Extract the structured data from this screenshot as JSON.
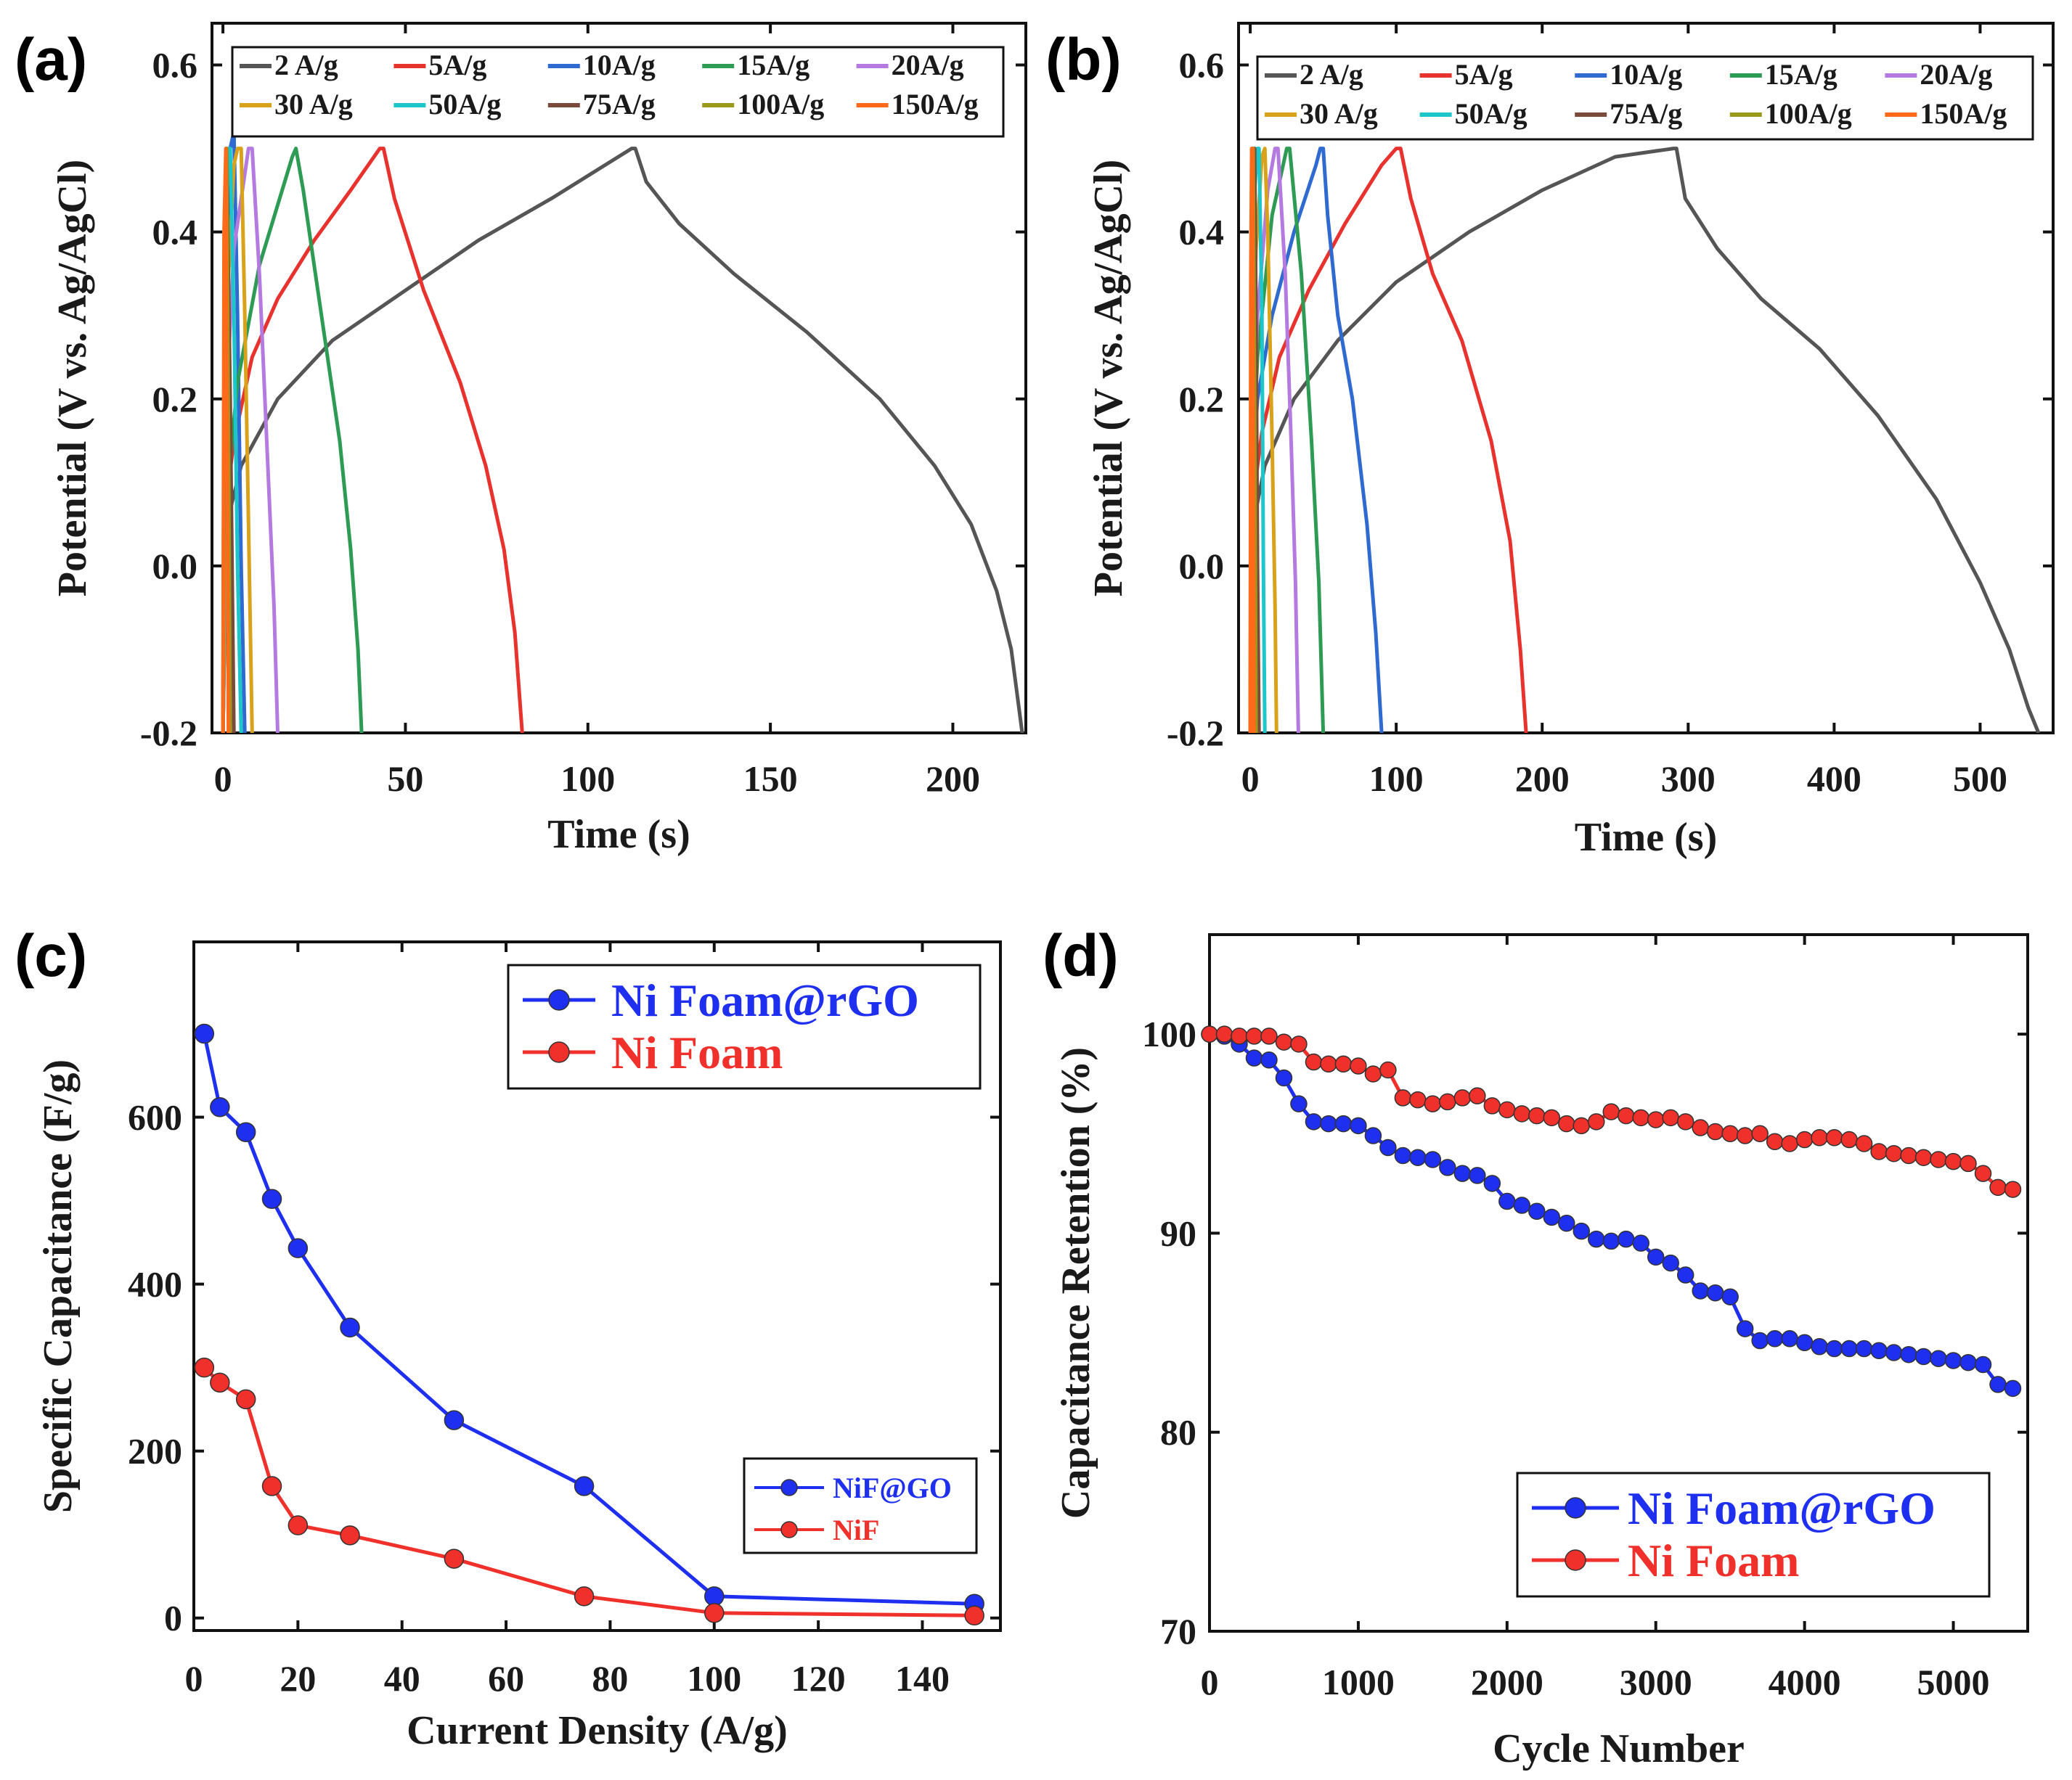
{
  "chart_data": [
    {
      "id": "a",
      "panel_label": "(a)",
      "type": "line",
      "xlabel": "Time (s)",
      "ylabel": "Potential (V vs. Ag/AgCl)",
      "xlim": [
        -3,
        220
      ],
      "ylim": [
        -0.2,
        0.65
      ],
      "xticks": [
        0,
        50,
        100,
        150,
        200
      ],
      "yticks": [
        -0.2,
        0.0,
        0.2,
        0.4,
        0.6
      ],
      "ytick_labels": [
        "-0.2",
        "0.0",
        "0.2",
        "0.4",
        "0.6"
      ],
      "legend_position": "top",
      "series": [
        {
          "name": "2 A/g",
          "color": "#555555",
          "x": [
            0,
            1,
            5,
            15,
            30,
            50,
            70,
            90,
            112,
            113,
            116,
            125,
            140,
            160,
            180,
            195,
            205,
            212,
            216,
            219
          ],
          "y": [
            -0.2,
            0.05,
            0.12,
            0.2,
            0.27,
            0.33,
            0.39,
            0.44,
            0.5,
            0.5,
            0.46,
            0.41,
            0.35,
            0.28,
            0.2,
            0.12,
            0.05,
            -0.03,
            -0.1,
            -0.2
          ]
        },
        {
          "name": "5A/g",
          "color": "#e8322e",
          "x": [
            0,
            1,
            3,
            8,
            15,
            25,
            35,
            43,
            44,
            47,
            55,
            65,
            72,
            77,
            80,
            82
          ],
          "y": [
            -0.2,
            0.08,
            0.15,
            0.25,
            0.32,
            0.39,
            0.45,
            0.5,
            0.5,
            0.44,
            0.33,
            0.22,
            0.12,
            0.02,
            -0.08,
            -0.2
          ]
        },
        {
          "name": "10A/g",
          "color": "#2f6ad0",
          "x": [
            0,
            0.5,
            2,
            3,
            4,
            5,
            6
          ],
          "y": [
            -0.2,
            0.3,
            0.5,
            0.52,
            0.3,
            0.0,
            -0.2
          ]
        },
        {
          "name": "15A/g",
          "color": "#2e9b55",
          "x": [
            0,
            1,
            4,
            10,
            19,
            20,
            22,
            27,
            32,
            35,
            37,
            38
          ],
          "y": [
            -0.2,
            0.08,
            0.22,
            0.36,
            0.49,
            0.5,
            0.45,
            0.3,
            0.15,
            0.02,
            -0.1,
            -0.2
          ]
        },
        {
          "name": "20A/g",
          "color": "#b57ae0",
          "x": [
            0,
            1,
            3,
            7,
            8,
            10,
            12,
            14,
            15
          ],
          "y": [
            -0.2,
            0.2,
            0.38,
            0.5,
            0.5,
            0.35,
            0.15,
            -0.05,
            -0.2
          ]
        },
        {
          "name": "30 A/g",
          "color": "#d8a21a",
          "x": [
            0,
            1,
            3,
            4,
            5,
            6,
            7,
            8
          ],
          "y": [
            -0.2,
            0.3,
            0.48,
            0.5,
            0.5,
            0.3,
            0.05,
            -0.2
          ]
        },
        {
          "name": "50A/g",
          "color": "#1cc6c9",
          "x": [
            0,
            0.5,
            1.5,
            2,
            3,
            4,
            5
          ],
          "y": [
            -0.2,
            0.35,
            0.5,
            0.5,
            0.3,
            0.0,
            -0.2
          ]
        },
        {
          "name": "75A/g",
          "color": "#7a4a3a",
          "x": [
            0,
            0.5,
            1,
            2,
            3
          ],
          "y": [
            -0.2,
            0.4,
            0.5,
            0.2,
            -0.2
          ]
        },
        {
          "name": "100A/g",
          "color": "#9a9a1a",
          "x": [
            0,
            0.4,
            1,
            1.6,
            2
          ],
          "y": [
            -0.2,
            0.4,
            0.5,
            0.1,
            -0.2
          ]
        },
        {
          "name": "150A/g",
          "color": "#ff6a1a",
          "x": [
            0,
            0.3,
            0.8,
            1.2,
            1.5
          ],
          "y": [
            -0.2,
            0.4,
            0.5,
            0.1,
            -0.2
          ]
        }
      ]
    },
    {
      "id": "b",
      "panel_label": "(b)",
      "type": "line",
      "xlabel": "Time (s)",
      "ylabel": "Potential (V vs. Ag/AgCl)",
      "xlim": [
        -8,
        550
      ],
      "ylim": [
        -0.2,
        0.65
      ],
      "xticks": [
        0,
        100,
        200,
        300,
        400,
        500
      ],
      "yticks": [
        -0.2,
        0.0,
        0.2,
        0.4,
        0.6
      ],
      "ytick_labels": [
        "-0.2",
        "0.0",
        "0.2",
        "0.4",
        "0.6"
      ],
      "legend_position": "top",
      "series": [
        {
          "name": "2 A/g",
          "color": "#555555",
          "x": [
            0,
            2,
            10,
            30,
            60,
            100,
            150,
            200,
            250,
            290,
            292,
            298,
            320,
            350,
            390,
            430,
            470,
            500,
            520,
            533,
            540
          ],
          "y": [
            -0.2,
            0.05,
            0.12,
            0.2,
            0.27,
            0.34,
            0.4,
            0.45,
            0.49,
            0.5,
            0.5,
            0.44,
            0.38,
            0.32,
            0.26,
            0.18,
            0.08,
            -0.02,
            -0.1,
            -0.17,
            -0.2
          ]
        },
        {
          "name": "5A/g",
          "color": "#e8322e",
          "x": [
            0,
            2,
            8,
            20,
            40,
            65,
            90,
            100,
            103,
            110,
            125,
            145,
            165,
            178,
            185,
            189
          ],
          "y": [
            -0.2,
            0.08,
            0.16,
            0.25,
            0.33,
            0.41,
            0.48,
            0.5,
            0.5,
            0.44,
            0.35,
            0.27,
            0.15,
            0.03,
            -0.1,
            -0.2
          ]
        },
        {
          "name": "10A/g",
          "color": "#2f6ad0",
          "x": [
            0,
            1,
            5,
            15,
            30,
            45,
            48,
            50,
            53,
            60,
            70,
            80,
            86,
            90
          ],
          "y": [
            -0.2,
            0.1,
            0.2,
            0.3,
            0.4,
            0.48,
            0.5,
            0.5,
            0.42,
            0.3,
            0.2,
            0.05,
            -0.08,
            -0.2
          ]
        },
        {
          "name": "15A/g",
          "color": "#2e9b55",
          "x": [
            0,
            1,
            5,
            15,
            25,
            27,
            35,
            42,
            47,
            50
          ],
          "y": [
            -0.2,
            0.1,
            0.25,
            0.42,
            0.5,
            0.5,
            0.35,
            0.15,
            -0.02,
            -0.2
          ]
        },
        {
          "name": "20A/g",
          "color": "#b57ae0",
          "x": [
            0,
            1,
            5,
            12,
            17,
            19,
            24,
            28,
            31,
            33
          ],
          "y": [
            -0.2,
            0.12,
            0.3,
            0.45,
            0.5,
            0.5,
            0.35,
            0.15,
            -0.02,
            -0.2
          ]
        },
        {
          "name": "30 A/g",
          "color": "#d8a21a",
          "x": [
            0,
            1,
            4,
            8,
            10,
            12,
            15,
            17,
            18
          ],
          "y": [
            -0.2,
            0.2,
            0.38,
            0.49,
            0.5,
            0.4,
            0.15,
            -0.05,
            -0.2
          ]
        },
        {
          "name": "50A/g",
          "color": "#1cc6c9",
          "x": [
            0,
            1,
            3,
            5,
            6,
            8,
            9,
            10
          ],
          "y": [
            -0.2,
            0.25,
            0.45,
            0.5,
            0.5,
            0.3,
            0.0,
            -0.2
          ]
        },
        {
          "name": "75A/g",
          "color": "#7a4a3a",
          "x": [
            0,
            0.8,
            2,
            3,
            4,
            5,
            6
          ],
          "y": [
            -0.2,
            0.3,
            0.48,
            0.5,
            0.3,
            0.0,
            -0.2
          ]
        },
        {
          "name": "100A/g",
          "color": "#9a9a1a",
          "x": [
            0,
            0.5,
            1.5,
            2,
            3,
            4
          ],
          "y": [
            -0.2,
            0.35,
            0.5,
            0.5,
            0.2,
            -0.2
          ]
        },
        {
          "name": "150A/g",
          "color": "#ff6a1a",
          "x": [
            0,
            0.4,
            1,
            1.5,
            2,
            2.5
          ],
          "y": [
            -0.2,
            0.35,
            0.5,
            0.5,
            0.2,
            -0.2
          ]
        }
      ]
    },
    {
      "id": "c",
      "panel_label": "(c)",
      "type": "line",
      "xlabel": "Current Density (A/g)",
      "ylabel": "Specific Capacitance (F/g)",
      "xlim": [
        0,
        155
      ],
      "ylim": [
        -15,
        810
      ],
      "xticks": [
        0,
        20,
        40,
        60,
        80,
        100,
        120,
        140
      ],
      "yticks": [
        0,
        200,
        400,
        600
      ],
      "main_legend": [
        "Ni Foam@rGO",
        "Ni Foam"
      ],
      "main_legend_position": "top-right",
      "inset_legend": [
        "NiF@GO",
        "NiF"
      ],
      "inset_legend_position": "lower-right",
      "series": [
        {
          "name": "Ni Foam@rGO",
          "color": "#1e2ff0",
          "x": [
            2,
            5,
            10,
            15,
            20,
            30,
            50,
            75,
            100,
            150
          ],
          "y": [
            700,
            612,
            582,
            502,
            443,
            348,
            237,
            158,
            26,
            17
          ]
        },
        {
          "name": "Ni Foam",
          "color": "#f0302a",
          "x": [
            2,
            5,
            10,
            15,
            20,
            30,
            50,
            75,
            100,
            150
          ],
          "y": [
            300,
            282,
            262,
            158,
            111,
            99,
            71,
            26,
            6,
            3
          ]
        }
      ]
    },
    {
      "id": "d",
      "panel_label": "(d)",
      "type": "line",
      "xlabel": "Cycle Number",
      "ylabel": "Capacitance Retention (%)",
      "xlim": [
        0,
        5500
      ],
      "ylim": [
        70,
        105
      ],
      "xticks": [
        0,
        1000,
        2000,
        3000,
        4000,
        5000
      ],
      "yticks": [
        70,
        80,
        90,
        100
      ],
      "legend_position": "bottom-right",
      "series": [
        {
          "name": "Ni Foam@rGO",
          "color": "#1e2ff0",
          "x": [
            0,
            100,
            200,
            300,
            400,
            500,
            600,
            700,
            800,
            900,
            1000,
            1100,
            1200,
            1300,
            1400,
            1500,
            1600,
            1700,
            1800,
            1900,
            2000,
            2100,
            2200,
            2300,
            2400,
            2500,
            2600,
            2700,
            2800,
            2900,
            3000,
            3100,
            3200,
            3300,
            3400,
            3500,
            3600,
            3700,
            3800,
            3900,
            4000,
            4100,
            4200,
            4300,
            4400,
            4500,
            4600,
            4700,
            4800,
            4900,
            5000,
            5100,
            5200,
            5300,
            5400
          ],
          "y": [
            100,
            99.9,
            99.5,
            98.8,
            98.7,
            97.8,
            96.5,
            95.6,
            95.5,
            95.5,
            95.4,
            94.9,
            94.3,
            93.9,
            93.8,
            93.7,
            93.3,
            93.0,
            92.9,
            92.5,
            91.6,
            91.4,
            91.1,
            90.8,
            90.5,
            90.1,
            89.7,
            89.6,
            89.7,
            89.5,
            88.8,
            88.5,
            87.9,
            87.1,
            87.0,
            86.8,
            85.2,
            84.6,
            84.7,
            84.7,
            84.5,
            84.3,
            84.2,
            84.2,
            84.2,
            84.1,
            84.0,
            83.9,
            83.8,
            83.7,
            83.6,
            83.5,
            83.4,
            82.4,
            82.2
          ]
        },
        {
          "name": "Ni Foam",
          "color": "#f0302a",
          "x": [
            0,
            100,
            200,
            300,
            400,
            500,
            600,
            700,
            800,
            900,
            1000,
            1100,
            1200,
            1300,
            1400,
            1500,
            1600,
            1700,
            1800,
            1900,
            2000,
            2100,
            2200,
            2300,
            2400,
            2500,
            2600,
            2700,
            2800,
            2900,
            3000,
            3100,
            3200,
            3300,
            3400,
            3500,
            3600,
            3700,
            3800,
            3900,
            4000,
            4100,
            4200,
            4300,
            4400,
            4500,
            4600,
            4700,
            4800,
            4900,
            5000,
            5100,
            5200,
            5300,
            5400
          ],
          "y": [
            100,
            100,
            99.9,
            99.9,
            99.9,
            99.6,
            99.5,
            98.6,
            98.5,
            98.5,
            98.4,
            98.0,
            98.2,
            96.8,
            96.7,
            96.5,
            96.6,
            96.8,
            96.9,
            96.4,
            96.2,
            96.0,
            95.9,
            95.8,
            95.5,
            95.4,
            95.6,
            96.1,
            95.9,
            95.8,
            95.7,
            95.8,
            95.6,
            95.3,
            95.1,
            95.0,
            94.9,
            95.0,
            94.6,
            94.5,
            94.7,
            94.8,
            94.8,
            94.7,
            94.5,
            94.1,
            94.0,
            93.9,
            93.8,
            93.7,
            93.6,
            93.5,
            93.0,
            92.3,
            92.2
          ]
        }
      ]
    }
  ]
}
